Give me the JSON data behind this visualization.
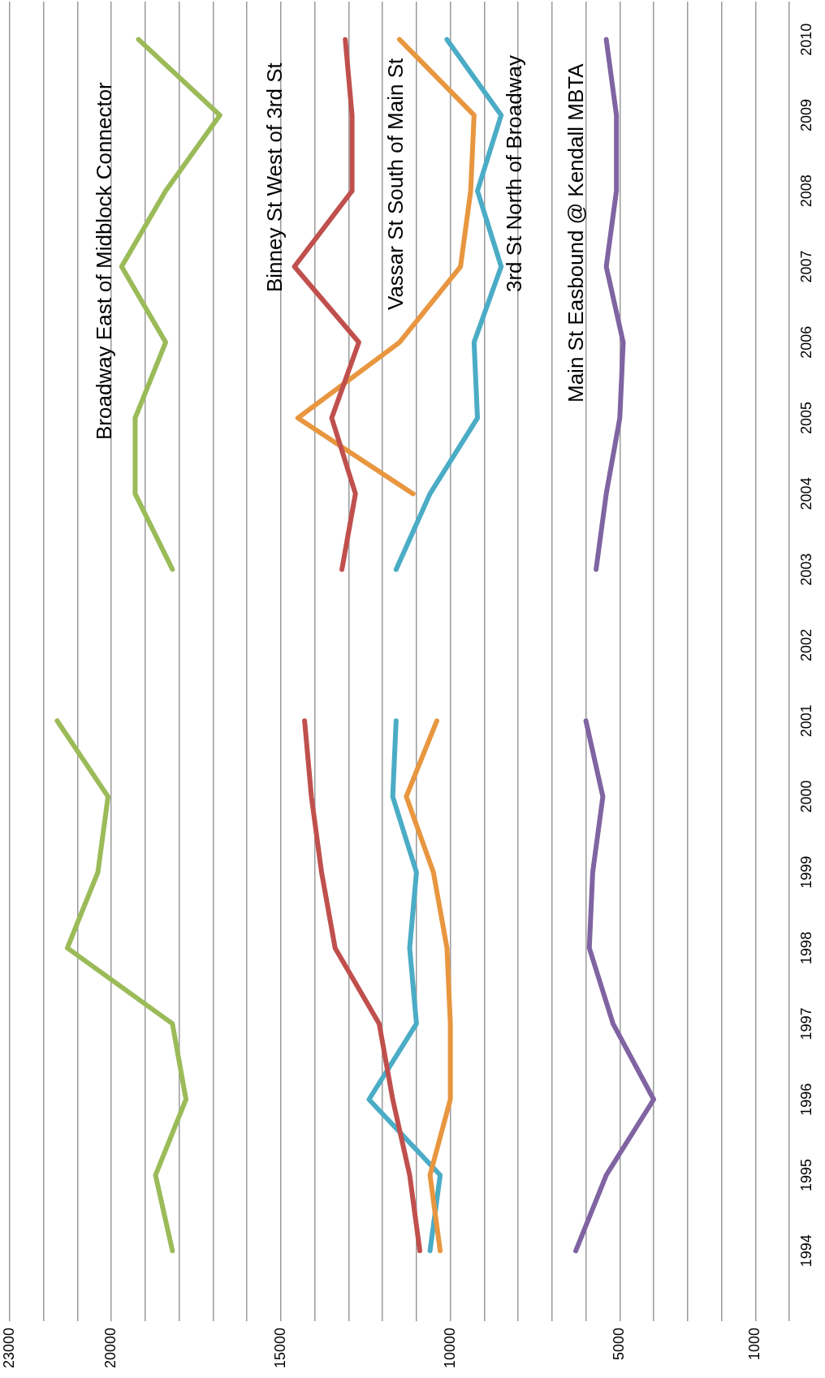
{
  "chart_data": {
    "type": "line",
    "orientation": "horizontal",
    "categories": [
      "2010",
      "2009",
      "2008",
      "2007",
      "2006",
      "2005",
      "2004",
      "2003",
      "2002",
      "2001",
      "2000",
      "1999",
      "1998",
      "1997",
      "1996",
      "1995",
      "1994"
    ],
    "series": [
      {
        "name": "Broadway East of Midblock Connector",
        "color": "#9bbb59",
        "values": [
          19200,
          16800,
          18400,
          19700,
          18400,
          19300,
          19300,
          18200,
          null,
          21600,
          20100,
          20400,
          21300,
          18200,
          17800,
          18700,
          18200
        ]
      },
      {
        "name": "Binney St West of 3rd St",
        "color": "#c0504d",
        "values": [
          13100,
          12900,
          12900,
          14600,
          12700,
          13500,
          12800,
          13200,
          null,
          14300,
          14100,
          13800,
          13400,
          12100,
          11700,
          11200,
          10900
        ]
      },
      {
        "name": "Vassar St South of Main St",
        "color": "#e8963f",
        "values": [
          11500,
          9300,
          9400,
          9700,
          11500,
          14500,
          11100,
          null,
          null,
          10400,
          11300,
          10500,
          10100,
          10000,
          10000,
          10600,
          10300
        ]
      },
      {
        "name": "3rd St North of Broadway",
        "color": "#4bacc6",
        "values": [
          10100,
          8500,
          9200,
          8500,
          9300,
          9200,
          10600,
          11600,
          null,
          11600,
          11700,
          11000,
          11200,
          11000,
          12400,
          10300,
          10600
        ]
      },
      {
        "name": "Main St Easbound @ Kendall MBTA",
        "color": "#8064a2",
        "values": [
          5400,
          5100,
          5100,
          5400,
          4900,
          5000,
          5400,
          5700,
          null,
          6000,
          5500,
          5800,
          5900,
          5200,
          4000,
          5400,
          6300
        ]
      }
    ],
    "xlim": [
      23000,
      0
    ],
    "xticks": [
      23000,
      {
        "value": 22000,
        "label": null
      },
      {
        "value": 21000,
        "label": null
      },
      20000,
      {
        "value": 19000,
        "label": null
      },
      {
        "value": 18000,
        "label": null
      },
      {
        "value": 17000,
        "label": null
      },
      {
        "value": 16000,
        "label": null
      },
      15000,
      {
        "value": 14000,
        "label": null
      },
      {
        "value": 13000,
        "label": null
      },
      {
        "value": 12000,
        "label": null
      },
      {
        "value": 11000,
        "label": null
      },
      10000,
      {
        "value": 9000,
        "label": null
      },
      {
        "value": 8000,
        "label": null
      },
      {
        "value": 7000,
        "label": null
      },
      {
        "value": 6000,
        "label": null
      },
      5000,
      {
        "value": 4000,
        "label": null
      },
      {
        "value": 3000,
        "label": null
      },
      {
        "value": 2000,
        "label": null
      },
      1000,
      {
        "value": 0,
        "label": null
      }
    ],
    "grid": "x",
    "legend": false,
    "marker": "none",
    "line_style": "solid"
  }
}
